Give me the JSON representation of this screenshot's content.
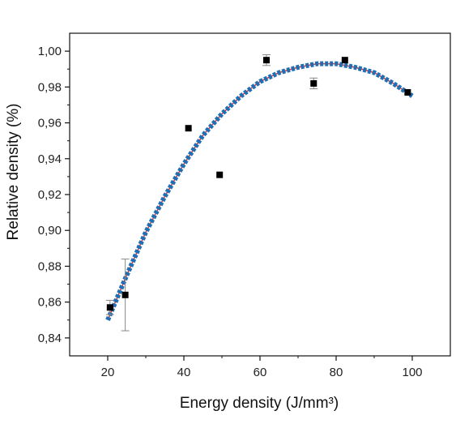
{
  "chart_data": {
    "type": "scatter",
    "xlabel": "Energy density (J/mm³)",
    "ylabel": "Relative density (%)",
    "xlim": [
      10,
      110
    ],
    "ylim": [
      0.83,
      1.01
    ],
    "x_ticks": [
      20,
      40,
      60,
      80,
      100
    ],
    "x_tick_labels": [
      "20",
      "40",
      "60",
      "80",
      "100"
    ],
    "y_ticks": [
      0.84,
      0.86,
      0.88,
      0.9,
      0.92,
      0.94,
      0.96,
      0.98,
      1.0
    ],
    "y_tick_labels": [
      "0,84",
      "0,86",
      "0,88",
      "0,90",
      "0,92",
      "0,94",
      "0,96",
      "0,98",
      "1,00"
    ],
    "grid": false,
    "series": [
      {
        "kind": "points",
        "marker": "square",
        "color": "#000000",
        "x": [
          20.6,
          24.6,
          41.2,
          49.4,
          61.7,
          74.1,
          82.3,
          98.8
        ],
        "y": [
          0.857,
          0.864,
          0.957,
          0.931,
          0.995,
          0.982,
          0.995,
          0.977
        ],
        "error": [
          0.004,
          0.02,
          0.0,
          0.0,
          0.003,
          0.003,
          0.0,
          0.0
        ],
        "error_color": "#888888"
      },
      {
        "kind": "fit",
        "style": "solid",
        "color": "#e03030",
        "x": [
          20,
          25,
          30,
          35,
          40,
          45,
          50,
          55,
          60,
          65,
          70,
          75,
          80,
          85,
          90,
          95,
          100
        ],
        "y": [
          0.85,
          0.875,
          0.899,
          0.919,
          0.937,
          0.953,
          0.965,
          0.975,
          0.983,
          0.988,
          0.991,
          0.993,
          0.993,
          0.991,
          0.988,
          0.982,
          0.975
        ]
      },
      {
        "kind": "fit",
        "style": "dotted",
        "color": "#1f6fb5",
        "x": [
          20,
          25,
          30,
          35,
          40,
          45,
          50,
          55,
          60,
          65,
          70,
          75,
          80,
          85,
          90,
          95,
          100
        ],
        "y": [
          0.85,
          0.875,
          0.899,
          0.919,
          0.937,
          0.953,
          0.965,
          0.975,
          0.983,
          0.988,
          0.991,
          0.993,
          0.993,
          0.991,
          0.988,
          0.982,
          0.975
        ]
      }
    ]
  }
}
